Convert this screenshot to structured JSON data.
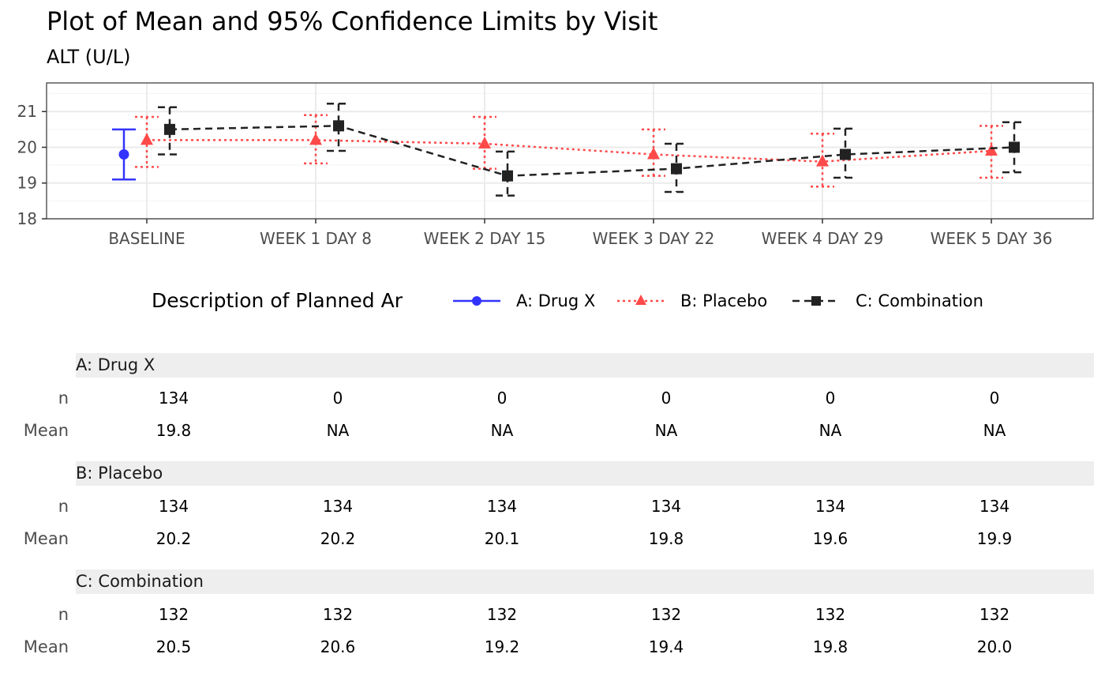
{
  "title": "Plot of Mean and 95% Confidence Limits by Visit",
  "subtitle": "ALT (U/L)",
  "chart_data": {
    "type": "line",
    "title": "Plot of Mean and 95% Confidence Limits by Visit",
    "subtitle": "ALT (U/L)",
    "categories": [
      "BASELINE",
      "WEEK 1 DAY 8",
      "WEEK 2 DAY 15",
      "WEEK 3 DAY 22",
      "WEEK 4 DAY 29",
      "WEEK 5 DAY 36"
    ],
    "y_ticks": [
      18,
      19,
      20,
      21
    ],
    "ylim": [
      18,
      21.8
    ],
    "grid": true,
    "legend_position": "bottom",
    "legend_title": "Description of Planned Ar",
    "series": [
      {
        "name": "A: Drug X",
        "color": "#3333ff",
        "marker": "circle",
        "line_style": "solid",
        "values": [
          19.8,
          null,
          null,
          null,
          null,
          null
        ],
        "lower": [
          19.1,
          null,
          null,
          null,
          null,
          null
        ],
        "upper": [
          20.5,
          null,
          null,
          null,
          null,
          null
        ]
      },
      {
        "name": "B: Placebo",
        "color": "#ff4a4a",
        "marker": "triangle",
        "line_style": "dotted",
        "values": [
          20.2,
          20.2,
          20.1,
          19.8,
          19.6,
          19.9
        ],
        "lower": [
          19.45,
          19.55,
          19.4,
          19.2,
          18.9,
          19.15
        ],
        "upper": [
          20.85,
          20.9,
          20.85,
          20.5,
          20.38,
          20.6
        ]
      },
      {
        "name": "C: Combination",
        "color": "#222222",
        "marker": "square",
        "line_style": "dashed",
        "values": [
          20.5,
          20.6,
          19.2,
          19.4,
          19.8,
          20.0
        ],
        "lower": [
          19.8,
          19.9,
          18.65,
          18.75,
          19.15,
          19.3
        ],
        "upper": [
          21.12,
          21.22,
          19.88,
          20.1,
          20.52,
          20.7
        ]
      }
    ]
  },
  "table": {
    "row_labels": [
      "n",
      "Mean"
    ],
    "groups": [
      {
        "name": "A: Drug X",
        "n": [
          "134",
          "0",
          "0",
          "0",
          "0",
          "0"
        ],
        "mean": [
          "19.8",
          "NA",
          "NA",
          "NA",
          "NA",
          "NA"
        ]
      },
      {
        "name": "B: Placebo",
        "n": [
          "134",
          "134",
          "134",
          "134",
          "134",
          "134"
        ],
        "mean": [
          "20.2",
          "20.2",
          "20.1",
          "19.8",
          "19.6",
          "19.9"
        ]
      },
      {
        "name": "C: Combination",
        "n": [
          "132",
          "132",
          "132",
          "132",
          "132",
          "132"
        ],
        "mean": [
          "20.5",
          "20.6",
          "19.2",
          "19.4",
          "19.8",
          "20.0"
        ]
      }
    ]
  }
}
